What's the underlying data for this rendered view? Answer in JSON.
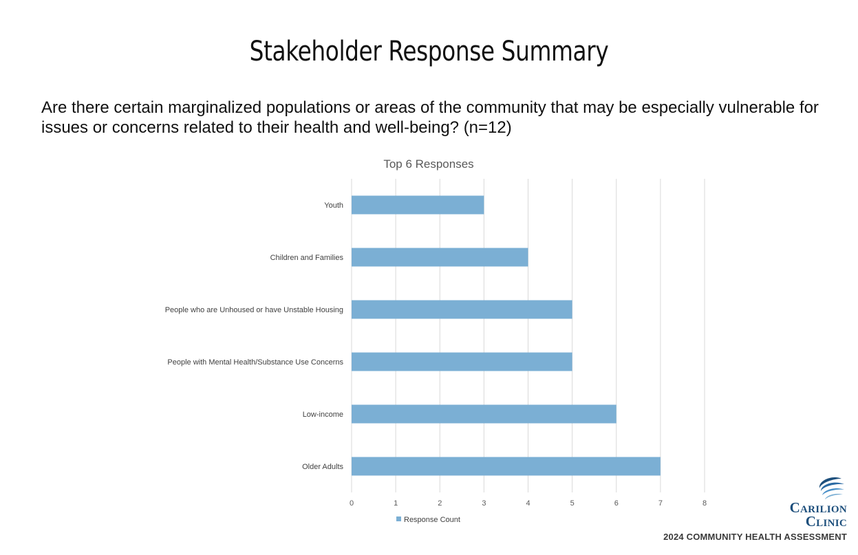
{
  "page": {
    "title": "Stakeholder Response Summary",
    "question": "Are there certain marginalized populations or areas of the community that may be especially vulnerable for issues or concerns related to their health and well-being? (n=12)",
    "footer": "2024 COMMUNITY HEALTH ASSESSMENT",
    "logo": {
      "line1": "Carilion",
      "line2": "Clinic"
    }
  },
  "chart_data": {
    "type": "bar",
    "orientation": "horizontal",
    "title": "Top 6 Responses",
    "categories": [
      "Youth",
      "Children and Families",
      "People who are Unhoused or have Unstable Housing",
      "People with Mental Health/Substance Use Concerns",
      "Low-income",
      "Older Adults"
    ],
    "series": [
      {
        "name": "Response Count",
        "values": [
          3,
          4,
          5,
          5,
          6,
          7
        ]
      }
    ],
    "xlim": [
      0,
      8
    ],
    "xticks": [
      "0",
      "1",
      "2",
      "3",
      "4",
      "5",
      "6",
      "7",
      "8"
    ],
    "grid": true,
    "legend_position": "bottom",
    "bar_color": "#7bafd4",
    "grid_color": "#d9d9d9"
  }
}
